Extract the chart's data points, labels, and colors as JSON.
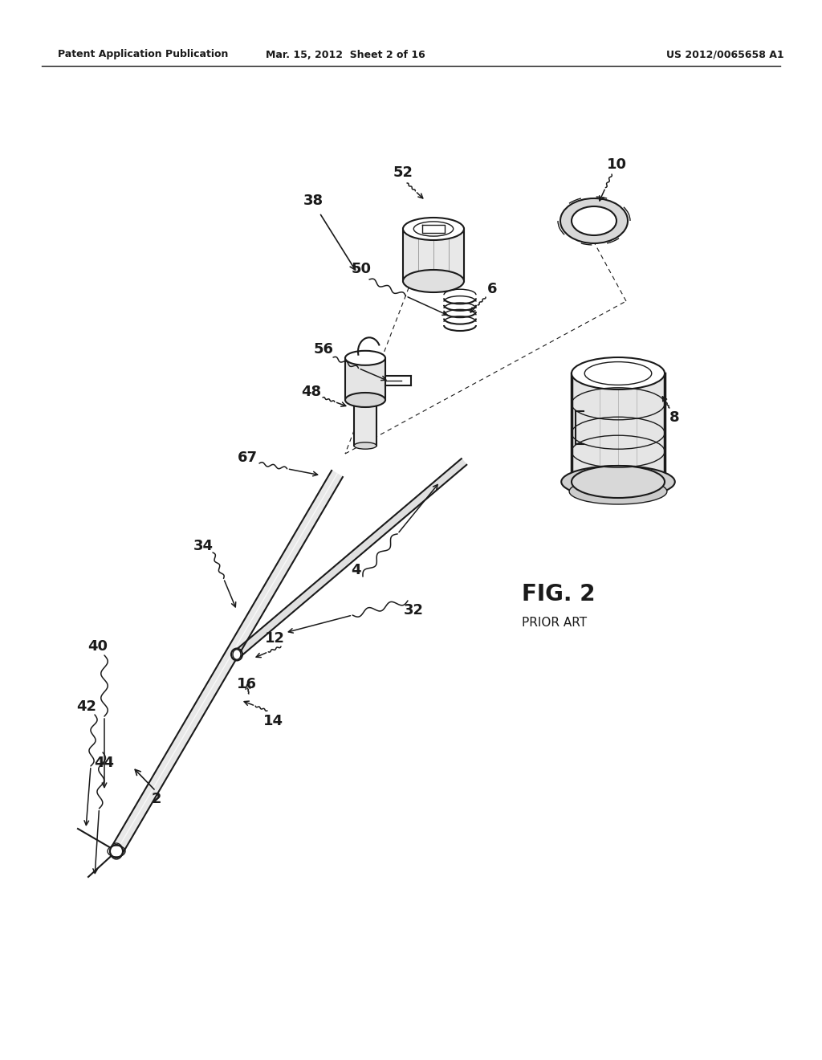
{
  "bg_color": "#ffffff",
  "line_color": "#1a1a1a",
  "header_left": "Patent Application Publication",
  "header_mid": "Mar. 15, 2012  Sheet 2 of 16",
  "header_right": "US 2012/0065658 A1",
  "fig_label": "FIG. 2",
  "fig_sublabel": "PRIOR ART"
}
